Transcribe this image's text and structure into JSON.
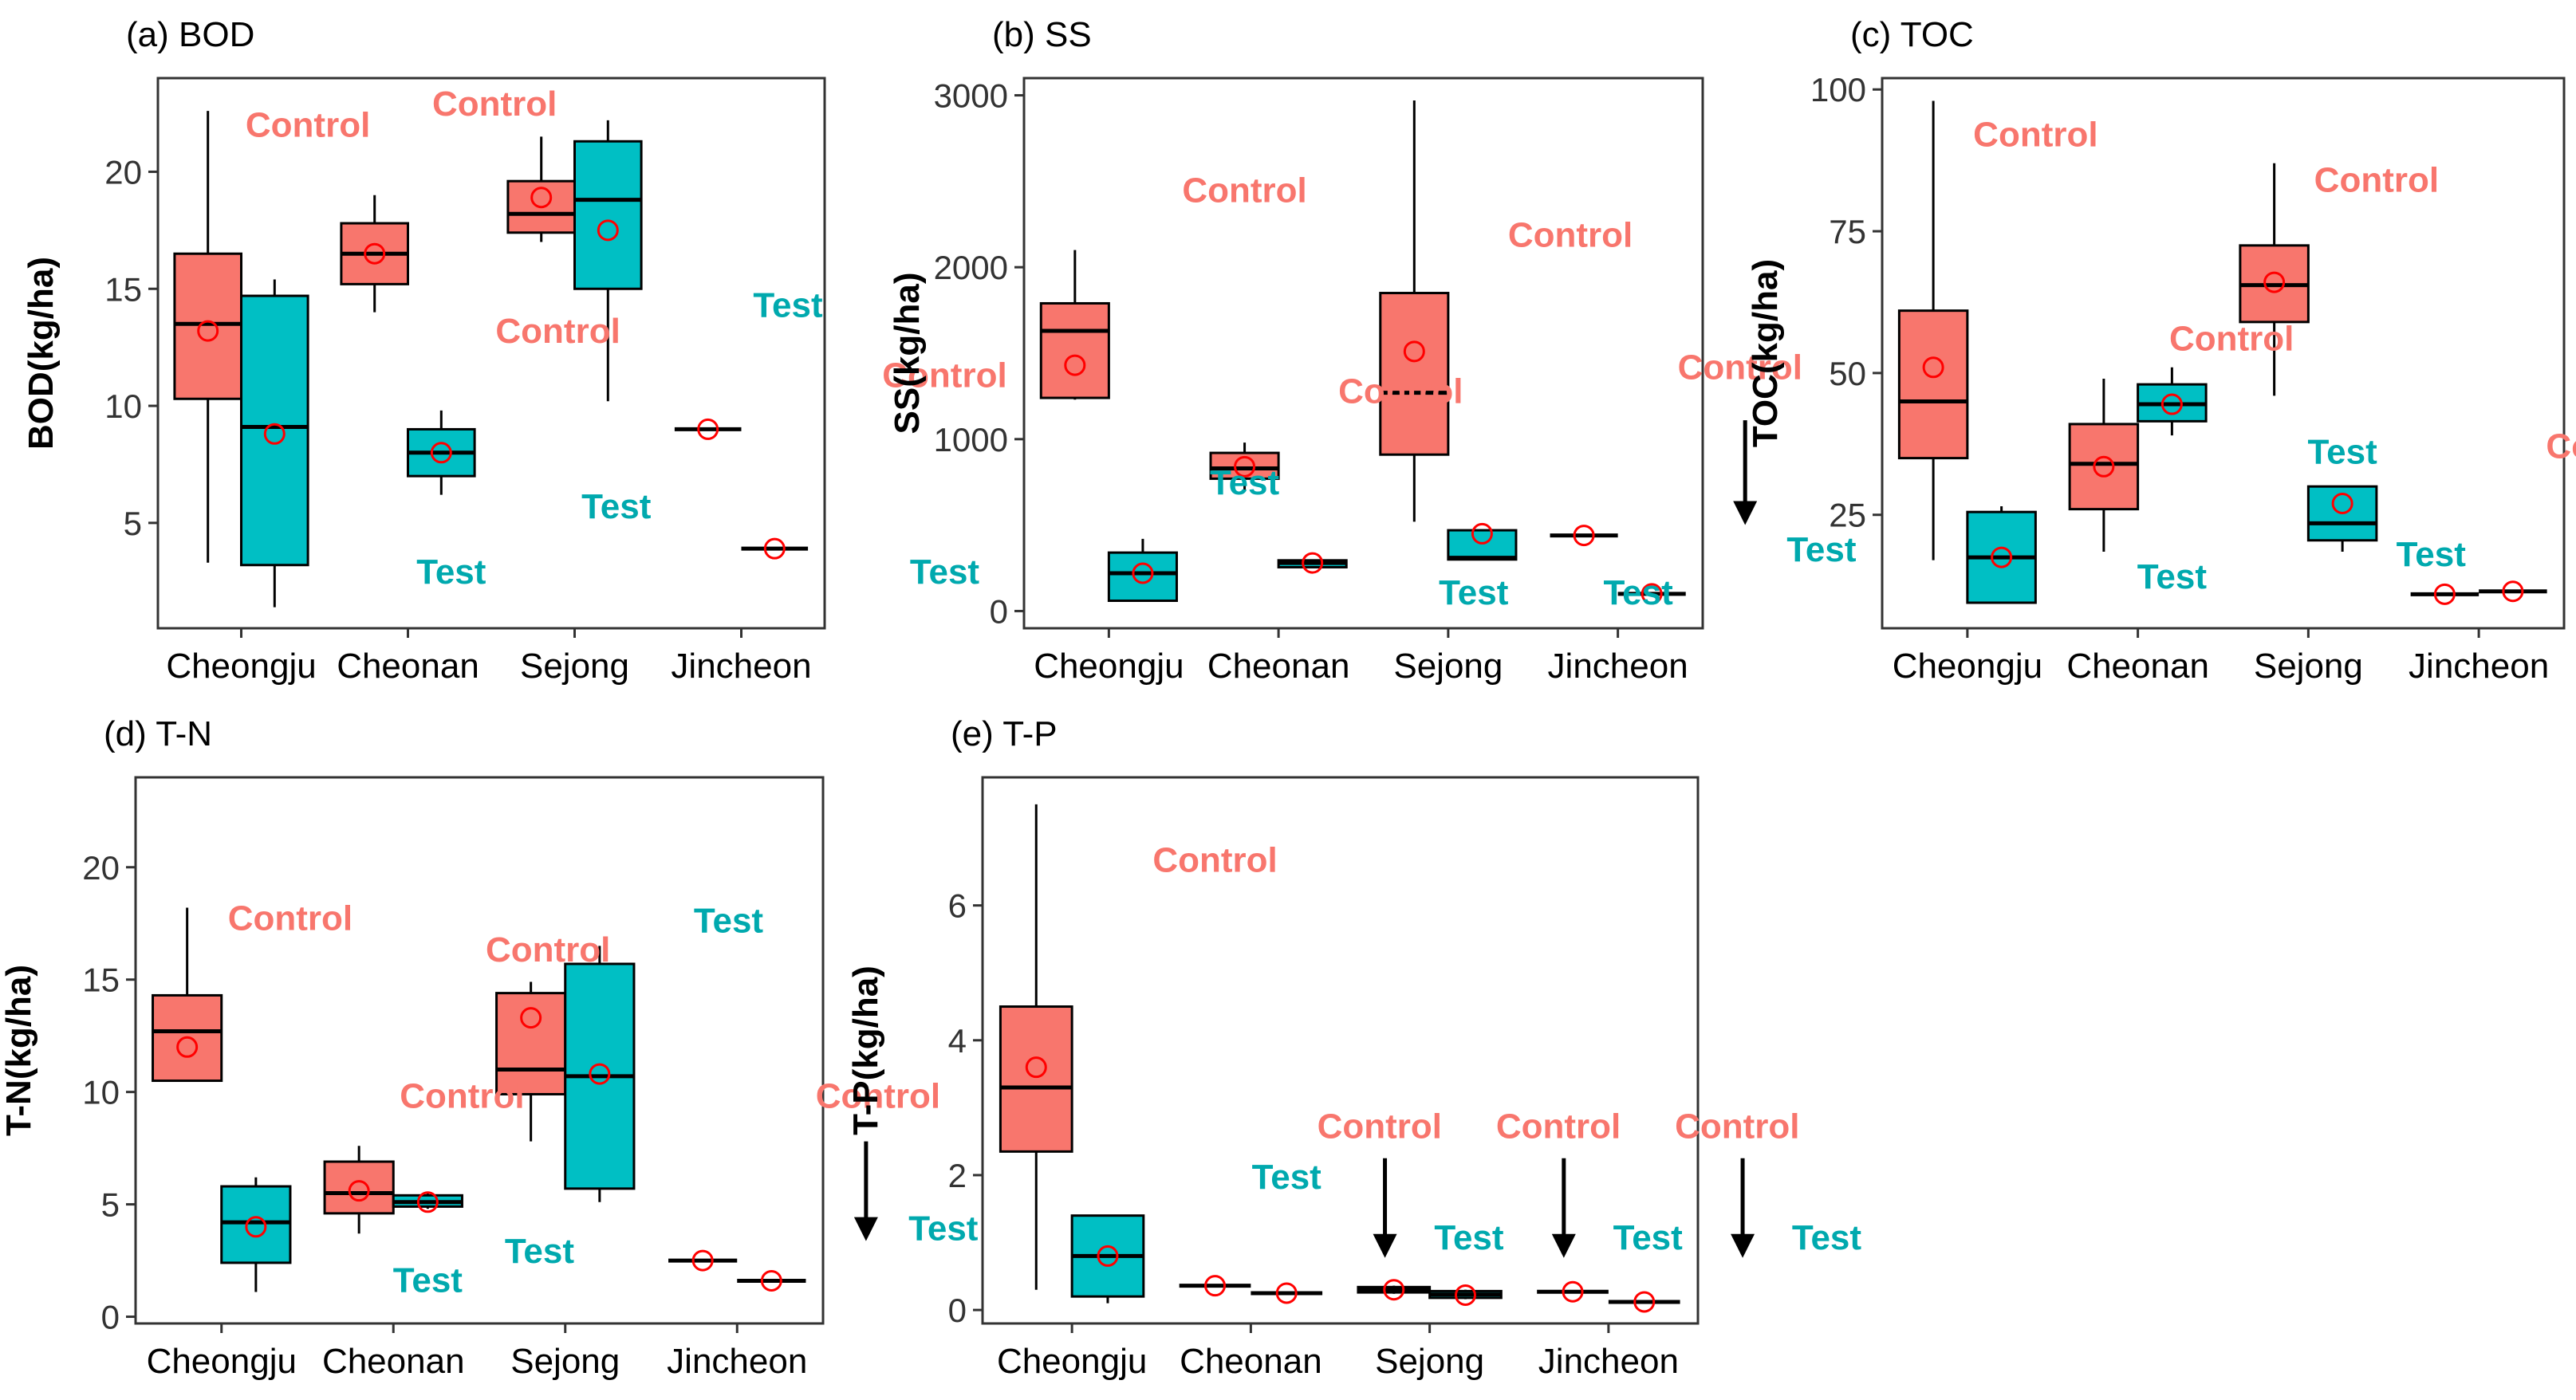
{
  "colors": {
    "control": "#F8766D",
    "test": "#00BFC4",
    "control_label": "#F8766D",
    "test_label": "#00A9AE",
    "mean_marker": "#FF0000",
    "axis": "#333333"
  },
  "chart_data": [
    {
      "id": "a",
      "type": "box",
      "title": "(a) BOD",
      "xlabel": "",
      "ylabel": "BOD(kg/ha)",
      "categories": [
        "Cheongju",
        "Cheonan",
        "Sejong",
        "Jincheon"
      ],
      "ylim": [
        0.5,
        24
      ],
      "yticks": [
        5,
        10,
        15,
        20
      ],
      "yticklabels": [
        "5",
        "10",
        "15",
        "20"
      ],
      "boxes": [
        {
          "cat": 0,
          "group": "Control",
          "min": 3.3,
          "q1": 10.3,
          "median": 13.5,
          "q3": 16.5,
          "max": 22.6,
          "mean": 13.2
        },
        {
          "cat": 0,
          "group": "Test",
          "min": 1.4,
          "q1": 3.2,
          "median": 9.1,
          "q3": 14.7,
          "max": 15.4,
          "mean": 8.8
        },
        {
          "cat": 1,
          "group": "Control",
          "min": 14.0,
          "q1": 15.2,
          "median": 16.5,
          "q3": 17.8,
          "max": 19.0,
          "mean": 16.5
        },
        {
          "cat": 1,
          "group": "Test",
          "min": 6.2,
          "q1": 7.0,
          "median": 8.0,
          "q3": 9.0,
          "max": 9.8,
          "mean": 8.0
        },
        {
          "cat": 2,
          "group": "Control",
          "min": 17.0,
          "q1": 17.4,
          "median": 18.2,
          "q3": 19.6,
          "max": 21.5,
          "mean": 18.9
        },
        {
          "cat": 2,
          "group": "Test",
          "min": 10.2,
          "q1": 15.0,
          "median": 18.8,
          "q3": 21.3,
          "max": 22.2,
          "mean": 17.5
        },
        {
          "cat": 3,
          "group": "Control",
          "min": 9.0,
          "q1": 9.0,
          "median": 9.0,
          "q3": 9.0,
          "max": 9.0,
          "mean": 9.0
        },
        {
          "cat": 3,
          "group": "Test",
          "min": 3.9,
          "q1": 3.9,
          "median": 3.9,
          "q3": 3.9,
          "max": 3.9,
          "mean": 3.9
        }
      ],
      "annotations": [
        {
          "text": "Control",
          "group": "Control",
          "x": 0.4,
          "y": 21.5
        },
        {
          "text": "Control",
          "group": "Control",
          "x": 1.52,
          "y": 22.4
        },
        {
          "text": "Test",
          "group": "Test",
          "x": 1.26,
          "y": 2.4
        },
        {
          "text": "Control",
          "group": "Control",
          "x": 1.9,
          "y": 12.7
        },
        {
          "text": "Test",
          "group": "Test",
          "x": 2.25,
          "y": 5.2
        },
        {
          "text": "Test",
          "group": "Test",
          "x": 3.28,
          "y": 13.8
        },
        {
          "text": "Control",
          "group": "Control",
          "x": 4.22,
          "y": 10.8
        },
        {
          "text": "Test",
          "group": "Test",
          "x": 4.22,
          "y": 2.4
        }
      ],
      "arrows": []
    },
    {
      "id": "b",
      "type": "box",
      "title": "(b) SS",
      "xlabel": "",
      "ylabel": "SS(kg/ha)",
      "categories": [
        "Cheongju",
        "Cheonan",
        "Sejong",
        "Jincheon"
      ],
      "ylim": [
        -100,
        3100
      ],
      "yticks": [
        0,
        1000,
        2000,
        3000
      ],
      "yticklabels": [
        "0",
        "1000",
        "2000",
        "3000"
      ],
      "boxes": [
        {
          "cat": 0,
          "group": "Control",
          "min": 1230,
          "q1": 1240,
          "median": 1630,
          "q3": 1790,
          "max": 2100,
          "mean": 1430
        },
        {
          "cat": 0,
          "group": "Test",
          "min": 60,
          "q1": 60,
          "median": 220,
          "q3": 340,
          "max": 420,
          "mean": 220
        },
        {
          "cat": 1,
          "group": "Control",
          "min": 700,
          "q1": 770,
          "median": 830,
          "q3": 920,
          "max": 980,
          "mean": 840
        },
        {
          "cat": 1,
          "group": "Test",
          "min": 250,
          "q1": 255,
          "median": 280,
          "q3": 295,
          "max": 300,
          "mean": 280
        },
        {
          "cat": 2,
          "group": "Control",
          "min": 520,
          "q1": 910,
          "median": 1270,
          "q3": 1850,
          "max": 2970,
          "mean": 1510
        },
        {
          "cat": 2,
          "group": "Test",
          "min": 300,
          "q1": 300,
          "median": 310,
          "q3": 470,
          "max": 470,
          "mean": 450
        },
        {
          "cat": 3,
          "group": "Control",
          "min": 440,
          "q1": 440,
          "median": 440,
          "q3": 440,
          "max": 440,
          "mean": 440
        },
        {
          "cat": 3,
          "group": "Test",
          "min": 100,
          "q1": 100,
          "median": 100,
          "q3": 100,
          "max": 100,
          "mean": 100
        }
      ],
      "annotations": [
        {
          "text": "Control",
          "group": "Control",
          "x": 0.8,
          "y": 2380
        },
        {
          "text": "Test",
          "group": "Test",
          "x": 0.8,
          "y": 680
        },
        {
          "text": "Control",
          "group": "Control",
          "x": 1.72,
          "y": 1210
        },
        {
          "text": "Test",
          "group": "Test",
          "x": 2.15,
          "y": 40
        },
        {
          "text": "Control",
          "group": "Control",
          "x": 2.72,
          "y": 2120
        },
        {
          "text": "Test",
          "group": "Test",
          "x": 3.12,
          "y": 40
        },
        {
          "text": "Control",
          "group": "Control",
          "x": 3.72,
          "y": 1350
        },
        {
          "text": "Test",
          "group": "Test",
          "x": 4.2,
          "y": 290
        }
      ],
      "arrows": [
        {
          "x": 3.75,
          "y1": 1110,
          "y2": 570
        }
      ]
    },
    {
      "id": "c",
      "type": "box",
      "title": "(c) TOC",
      "xlabel": "",
      "ylabel": "TOC(kg/ha)",
      "categories": [
        "Cheongju",
        "Cheonan",
        "Sejong",
        "Jincheon"
      ],
      "ylim": [
        5,
        102
      ],
      "yticks": [
        25,
        50,
        75,
        100
      ],
      "yticklabels": [
        "25",
        "50",
        "75",
        "100"
      ],
      "boxes": [
        {
          "cat": 0,
          "group": "Control",
          "min": 17,
          "q1": 35,
          "median": 45,
          "q3": 61,
          "max": 98,
          "mean": 51
        },
        {
          "cat": 0,
          "group": "Test",
          "min": 9.5,
          "q1": 9.5,
          "median": 17.5,
          "q3": 25.5,
          "max": 26.5,
          "mean": 17.5
        },
        {
          "cat": 1,
          "group": "Control",
          "min": 18.5,
          "q1": 26,
          "median": 34,
          "q3": 41,
          "max": 49,
          "mean": 33.5
        },
        {
          "cat": 1,
          "group": "Test",
          "min": 39,
          "q1": 41.5,
          "median": 44.5,
          "q3": 48,
          "max": 51,
          "mean": 44.5
        },
        {
          "cat": 2,
          "group": "Control",
          "min": 46,
          "q1": 59,
          "median": 65.5,
          "q3": 72.5,
          "max": 87,
          "mean": 66
        },
        {
          "cat": 2,
          "group": "Test",
          "min": 18.5,
          "q1": 20.5,
          "median": 23.5,
          "q3": 30,
          "max": 30,
          "mean": 27
        },
        {
          "cat": 3,
          "group": "Control",
          "min": 11,
          "q1": 11,
          "median": 11,
          "q3": 11,
          "max": 11,
          "mean": 11
        },
        {
          "cat": 3,
          "group": "Test",
          "min": 11.5,
          "q1": 11.5,
          "median": 11.5,
          "q3": 11.5,
          "max": 11.5,
          "mean": 11.5
        }
      ],
      "annotations": [
        {
          "text": "Control",
          "group": "Control",
          "x": 0.4,
          "y": 90
        },
        {
          "text": "Test",
          "group": "Test",
          "x": 1.2,
          "y": 12
        },
        {
          "text": "Control",
          "group": "Control",
          "x": 1.55,
          "y": 54
        },
        {
          "text": "Test",
          "group": "Test",
          "x": 2.2,
          "y": 34
        },
        {
          "text": "Control",
          "group": "Control",
          "x": 2.4,
          "y": 82
        },
        {
          "text": "Test",
          "group": "Test",
          "x": 2.72,
          "y": 16
        },
        {
          "text": "Control",
          "group": "Control",
          "x": 3.76,
          "y": 35
        },
        {
          "text": "Test",
          "group": "Test",
          "x": 4.16,
          "y": 22
        }
      ],
      "arrows": [
        {
          "x": 3.76,
          "y1": 33,
          "y2": 16
        }
      ]
    },
    {
      "id": "d",
      "type": "box",
      "title": "(d) T-N",
      "xlabel": "",
      "ylabel": "T-N(kg/ha)",
      "categories": [
        "Cheongju",
        "Cheonan",
        "Sejong",
        "Jincheon"
      ],
      "ylim": [
        -0.3,
        24
      ],
      "yticks": [
        0,
        5,
        10,
        15,
        20
      ],
      "yticklabels": [
        "0",
        "5",
        "10",
        "15",
        "20"
      ],
      "boxes": [
        {
          "cat": 0,
          "group": "Control",
          "min": 10.5,
          "q1": 10.5,
          "median": 12.7,
          "q3": 14.3,
          "max": 18.2,
          "mean": 12.0
        },
        {
          "cat": 0,
          "group": "Test",
          "min": 1.1,
          "q1": 2.4,
          "median": 4.2,
          "q3": 5.8,
          "max": 6.2,
          "mean": 4.0
        },
        {
          "cat": 1,
          "group": "Control",
          "min": 3.7,
          "q1": 4.6,
          "median": 5.5,
          "q3": 6.9,
          "max": 7.6,
          "mean": 5.6
        },
        {
          "cat": 1,
          "group": "Test",
          "min": 4.8,
          "q1": 4.9,
          "median": 5.1,
          "q3": 5.4,
          "max": 5.5,
          "mean": 5.1
        },
        {
          "cat": 2,
          "group": "Control",
          "min": 7.8,
          "q1": 9.9,
          "median": 11.0,
          "q3": 14.4,
          "max": 14.9,
          "mean": 13.3
        },
        {
          "cat": 2,
          "group": "Test",
          "min": 5.1,
          "q1": 5.7,
          "median": 10.7,
          "q3": 15.7,
          "max": 16.5,
          "mean": 10.8
        },
        {
          "cat": 3,
          "group": "Control",
          "min": 2.5,
          "q1": 2.5,
          "median": 2.5,
          "q3": 2.5,
          "max": 2.5,
          "mean": 2.5
        },
        {
          "cat": 3,
          "group": "Test",
          "min": 1.6,
          "q1": 1.6,
          "median": 1.6,
          "q3": 1.6,
          "max": 1.6,
          "mean": 1.6
        }
      ],
      "annotations": [
        {
          "text": "Control",
          "group": "Control",
          "x": 0.4,
          "y": 17.2
        },
        {
          "text": "Test",
          "group": "Test",
          "x": 1.2,
          "y": 1.1
        },
        {
          "text": "Control",
          "group": "Control",
          "x": 1.4,
          "y": 9.3
        },
        {
          "text": "Test",
          "group": "Test",
          "x": 1.85,
          "y": 2.4
        },
        {
          "text": "Control",
          "group": "Control",
          "x": 1.9,
          "y": 15.8
        },
        {
          "text": "Test",
          "group": "Test",
          "x": 2.95,
          "y": 17.1
        },
        {
          "text": "Control",
          "group": "Control",
          "x": 3.82,
          "y": 9.3
        },
        {
          "text": "Test",
          "group": "Test",
          "x": 4.2,
          "y": 3.4
        }
      ],
      "arrows": [
        {
          "x": 3.75,
          "y1": 7.8,
          "y2": 3.9
        }
      ]
    },
    {
      "id": "e",
      "type": "box",
      "title": "(e) T-P",
      "xlabel": "",
      "ylabel": "T-P(kg/ha)",
      "categories": [
        "Cheongju",
        "Cheonan",
        "Sejong",
        "Jincheon"
      ],
      "ylim": [
        -0.2,
        7.9
      ],
      "yticks": [
        0,
        2,
        4,
        6
      ],
      "yticklabels": [
        "0",
        "2",
        "4",
        "6"
      ],
      "boxes": [
        {
          "cat": 0,
          "group": "Control",
          "min": 0.3,
          "q1": 2.35,
          "median": 3.3,
          "q3": 4.5,
          "max": 7.5,
          "mean": 3.6
        },
        {
          "cat": 0,
          "group": "Test",
          "min": 0.1,
          "q1": 0.2,
          "median": 0.8,
          "q3": 1.4,
          "max": 1.4,
          "mean": 0.8
        },
        {
          "cat": 1,
          "group": "Control",
          "min": 0.36,
          "q1": 0.36,
          "median": 0.36,
          "q3": 0.36,
          "max": 0.36,
          "mean": 0.36
        },
        {
          "cat": 1,
          "group": "Test",
          "min": 0.25,
          "q1": 0.25,
          "median": 0.25,
          "q3": 0.25,
          "max": 0.25,
          "mean": 0.25
        },
        {
          "cat": 2,
          "group": "Control",
          "min": 0.24,
          "q1": 0.26,
          "median": 0.3,
          "q3": 0.34,
          "max": 0.36,
          "mean": 0.3
        },
        {
          "cat": 2,
          "group": "Test",
          "min": 0.16,
          "q1": 0.18,
          "median": 0.23,
          "q3": 0.28,
          "max": 0.3,
          "mean": 0.22
        },
        {
          "cat": 3,
          "group": "Control",
          "min": 0.27,
          "q1": 0.27,
          "median": 0.27,
          "q3": 0.27,
          "max": 0.27,
          "mean": 0.27
        },
        {
          "cat": 3,
          "group": "Test",
          "min": 0.12,
          "q1": 0.12,
          "median": 0.12,
          "q3": 0.12,
          "max": 0.12,
          "mean": 0.12
        }
      ],
      "annotations": [
        {
          "text": "Control",
          "group": "Control",
          "x": 0.8,
          "y": 6.5
        },
        {
          "text": "Test",
          "group": "Test",
          "x": 1.2,
          "y": 1.8
        },
        {
          "text": "Control",
          "group": "Control",
          "x": 1.72,
          "y": 2.55
        },
        {
          "text": "Test",
          "group": "Test",
          "x": 2.22,
          "y": 0.9
        },
        {
          "text": "Control",
          "group": "Control",
          "x": 2.72,
          "y": 2.55
        },
        {
          "text": "Test",
          "group": "Test",
          "x": 3.22,
          "y": 0.9
        },
        {
          "text": "Control",
          "group": "Control",
          "x": 3.72,
          "y": 2.55
        },
        {
          "text": "Test",
          "group": "Test",
          "x": 4.22,
          "y": 0.9
        }
      ],
      "arrows": [
        {
          "x": 1.75,
          "y1": 2.25,
          "y2": 0.95
        },
        {
          "x": 2.75,
          "y1": 2.25,
          "y2": 0.95
        },
        {
          "x": 3.75,
          "y1": 2.25,
          "y2": 0.95
        }
      ]
    }
  ]
}
